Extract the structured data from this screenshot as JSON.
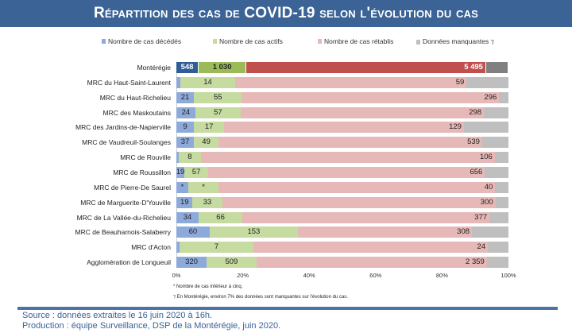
{
  "title": "Répartition des cas de COVID-19 selon l'évolution du cas",
  "colors": {
    "deces": "#8eaadb",
    "actifs": "#c5dba0",
    "retablis": "#e6b8b7",
    "manquantes": "#bfbfbf",
    "deces_total": "#2f5d95",
    "actifs_total": "#9bbb59",
    "retablis_total": "#c0504d",
    "manquantes_total": "#808080"
  },
  "chart_data": {
    "type": "bar",
    "stacked": "100%",
    "orientation": "horizontal",
    "title": "Répartition des cas de COVID-19 selon l'évolution du cas",
    "legend": [
      "Nombre de cas décédés",
      "Nombre de cas actifs",
      "Nombre de cas rétablis",
      "Données manquantes ⁊"
    ],
    "legend_position": "top",
    "xticks": [
      "0%",
      "20%",
      "40%",
      "60%",
      "80%",
      "100%"
    ],
    "xlim": [
      0,
      100
    ],
    "rows": [
      {
        "name": "Montérégie",
        "labels": [
          "548",
          "1 030",
          "5 495"
        ],
        "pct": [
          6.7,
          14.4,
          72.2,
          6.7
        ],
        "total": true
      },
      {
        "name": "MRC du Haut-Saint-Laurent",
        "labels": [
          "*",
          "14",
          "59"
        ],
        "pct": [
          1.1,
          16.7,
          69.6,
          12.6
        ]
      },
      {
        "name": "MRC du Haut-Richelieu",
        "labels": [
          "21",
          "55",
          "296"
        ],
        "pct": [
          5.3,
          14.4,
          77.5,
          2.8
        ]
      },
      {
        "name": "MRC des Maskoutains",
        "labels": [
          "24",
          "57",
          "298"
        ],
        "pct": [
          5.7,
          13.7,
          73.2,
          7.4
        ]
      },
      {
        "name": "MRC des Jardins-de-Napierville",
        "labels": [
          "9",
          "17",
          "129"
        ],
        "pct": [
          5.3,
          9.1,
          72.2,
          13.4
        ]
      },
      {
        "name": "MRC de Vaudreuil-Soulanges",
        "labels": [
          "37",
          "49",
          "539"
        ],
        "pct": [
          5.3,
          7.4,
          79.4,
          7.9
        ]
      },
      {
        "name": "MRC de Rouville",
        "labels": [
          "*",
          "8",
          "106"
        ],
        "pct": [
          0.7,
          6.7,
          88.5,
          4.1
        ]
      },
      {
        "name": "MRC de Roussillon",
        "labels": [
          "19",
          "57",
          "656"
        ],
        "pct": [
          2.4,
          7.2,
          83.3,
          7.1
        ]
      },
      {
        "name": "MRC de Pierre-De Saurel",
        "labels": [
          "*",
          "*",
          "40"
        ],
        "pct": [
          3.6,
          9.1,
          83.3,
          4.0
        ]
      },
      {
        "name": "MRC de Marguerite-D'Youville",
        "labels": [
          "19",
          "33",
          "300"
        ],
        "pct": [
          4.9,
          8.9,
          82.3,
          3.9
        ]
      },
      {
        "name": "MRC de La Vallée-du-Richelieu",
        "labels": [
          "34",
          "66",
          "377"
        ],
        "pct": [
          6.7,
          13.2,
          74.4,
          5.7
        ]
      },
      {
        "name": "MRC de Beauharnois-Salaberry",
        "labels": [
          "60",
          "153",
          "308"
        ],
        "pct": [
          10.0,
          26.6,
          52.4,
          11.0
        ]
      },
      {
        "name": "MRC d'Acton",
        "labels": [
          "*",
          "7",
          "24"
        ],
        "pct": [
          1.0,
          22.2,
          70.6,
          6.2
        ]
      },
      {
        "name": "Agglomération de Longueuil",
        "labels": [
          "320",
          "509",
          "2 359"
        ],
        "pct": [
          9.1,
          15.0,
          69.4,
          6.5
        ]
      }
    ]
  },
  "notes": [
    "* Nombre de cas inférieur à cinq.",
    "⁊ En Montérégie, environ 7% des données sont manquantes sur l'évolution du cas."
  ],
  "source": "Source : données extraites le 16 juin 2020 à 16h.",
  "production": "Production : équipe Surveillance, DSP de la Montérégie, juin 2020."
}
